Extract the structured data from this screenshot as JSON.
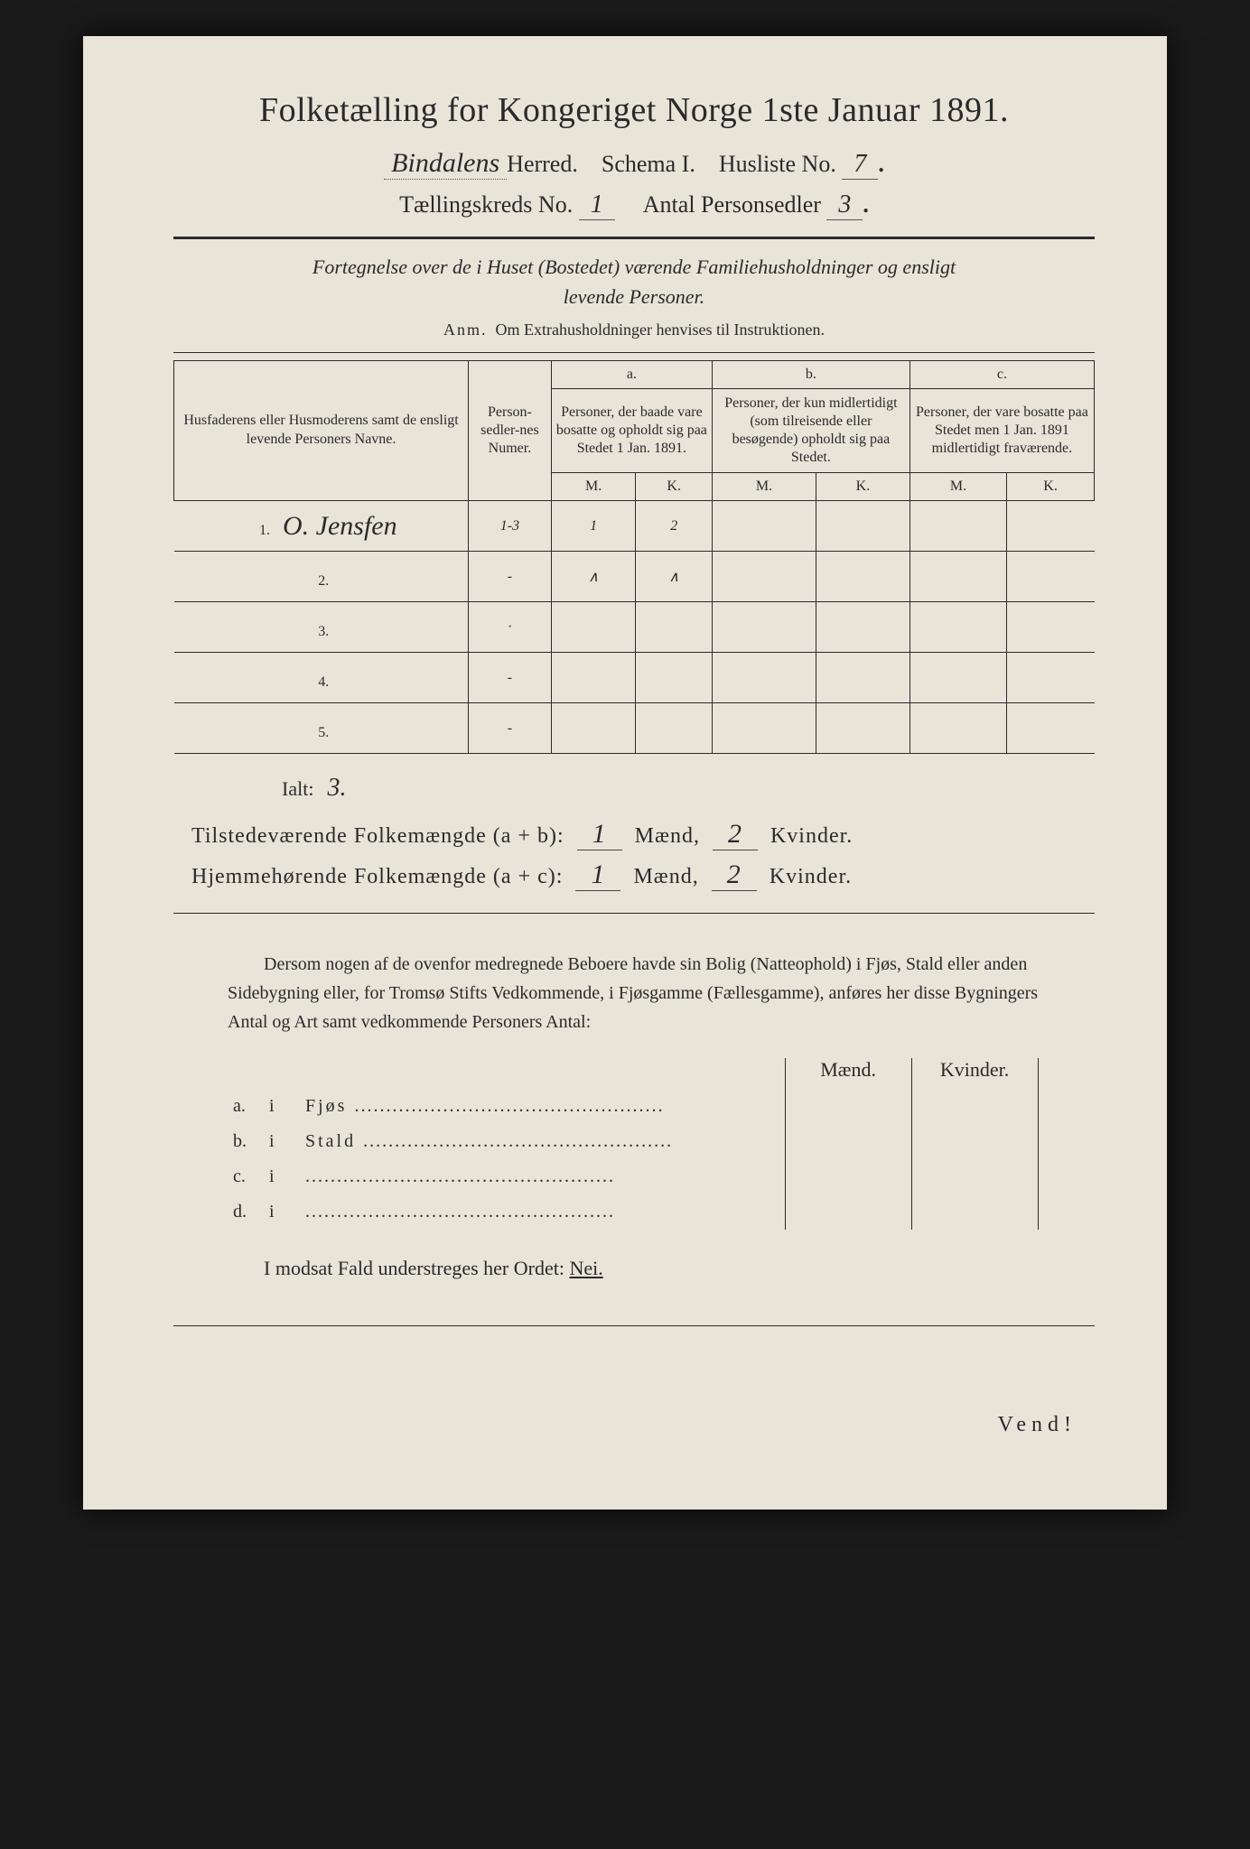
{
  "title": "Folketælling for Kongeriget Norge 1ste Januar 1891.",
  "header": {
    "herred_hw": "Bindalens",
    "herred_label": "Herred.",
    "schema_label": "Schema I.",
    "husliste_label": "Husliste No.",
    "husliste_hw": "7",
    "kreds_label": "Tællingskreds No.",
    "kreds_hw": "1",
    "antal_label": "Antal Personsedler",
    "antal_hw": "3"
  },
  "subtitle": {
    "line1": "Fortegnelse over de i Huset (Bostedet) værende Familiehusholdninger og ensligt",
    "line2": "levende Personer.",
    "anm_label": "Anm.",
    "anm_text": "Om Extrahusholdninger henvises til Instruktionen."
  },
  "table": {
    "col1": "Husfaderens eller Husmoderens samt de ensligt levende Personers Navne.",
    "col2": "Person-sedler-nes Numer.",
    "a_label": "a.",
    "a_text": "Personer, der baade vare bosatte og opholdt sig paa Stedet 1 Jan. 1891.",
    "b_label": "b.",
    "b_text": "Personer, der kun midlertidigt (som tilreisende eller besøgende) opholdt sig paa Stedet.",
    "c_label": "c.",
    "c_text": "Personer, der vare bosatte paa Stedet men 1 Jan. 1891 midlertidigt fraværende.",
    "m": "M.",
    "k": "K.",
    "rows": [
      {
        "n": "1.",
        "name": "O. Jensfen",
        "num": "1-3",
        "am": "1",
        "ak": "2",
        "bm": "",
        "bk": "",
        "cm": "",
        "ck": ""
      },
      {
        "n": "2.",
        "name": "",
        "num": "-",
        "am": "∧",
        "ak": "∧",
        "bm": "",
        "bk": "",
        "cm": "",
        "ck": ""
      },
      {
        "n": "3.",
        "name": "",
        "num": "·",
        "am": "",
        "ak": "",
        "bm": "",
        "bk": "",
        "cm": "",
        "ck": ""
      },
      {
        "n": "4.",
        "name": "",
        "num": "-",
        "am": "",
        "ak": "",
        "bm": "",
        "bk": "",
        "cm": "",
        "ck": ""
      },
      {
        "n": "5.",
        "name": "",
        "num": "-",
        "am": "",
        "ak": "",
        "bm": "",
        "bk": "",
        "cm": "",
        "ck": ""
      }
    ]
  },
  "ialt": {
    "label": "Ialt:",
    "hw": "3."
  },
  "totals": {
    "line1_label": "Tilstedeværende Folkemængde (a + b):",
    "line1_m": "1",
    "maend": "Mænd,",
    "line1_k": "2",
    "kvinder": "Kvinder.",
    "line2_label": "Hjemmehørende Folkemængde (a + c):",
    "line2_m": "1",
    "line2_k": "2"
  },
  "paragraph": "Dersom nogen af de ovenfor medregnede Beboere havde sin Bolig (Natteophold) i Fjøs, Stald eller anden Sidebygning eller, for Tromsø Stifts Vedkommende, i Fjøsgamme (Fællesgamme), anføres her disse Bygningers Antal og Art samt vedkommende Personers Antal:",
  "lower": {
    "maend": "Mænd.",
    "kvinder": "Kvinder.",
    "rows": [
      {
        "l": "a.",
        "i": "i",
        "t": "Fjøs"
      },
      {
        "l": "b.",
        "i": "i",
        "t": "Stald"
      },
      {
        "l": "c.",
        "i": "i",
        "t": ""
      },
      {
        "l": "d.",
        "i": "i",
        "t": ""
      }
    ]
  },
  "nei": {
    "pre": "I modsat Fald understreges her Ordet:",
    "word": "Nei."
  },
  "vend": "Vend!",
  "colors": {
    "paper": "#e8e4d8",
    "ink": "#2a2a2a",
    "bg": "#1a1a1a"
  }
}
